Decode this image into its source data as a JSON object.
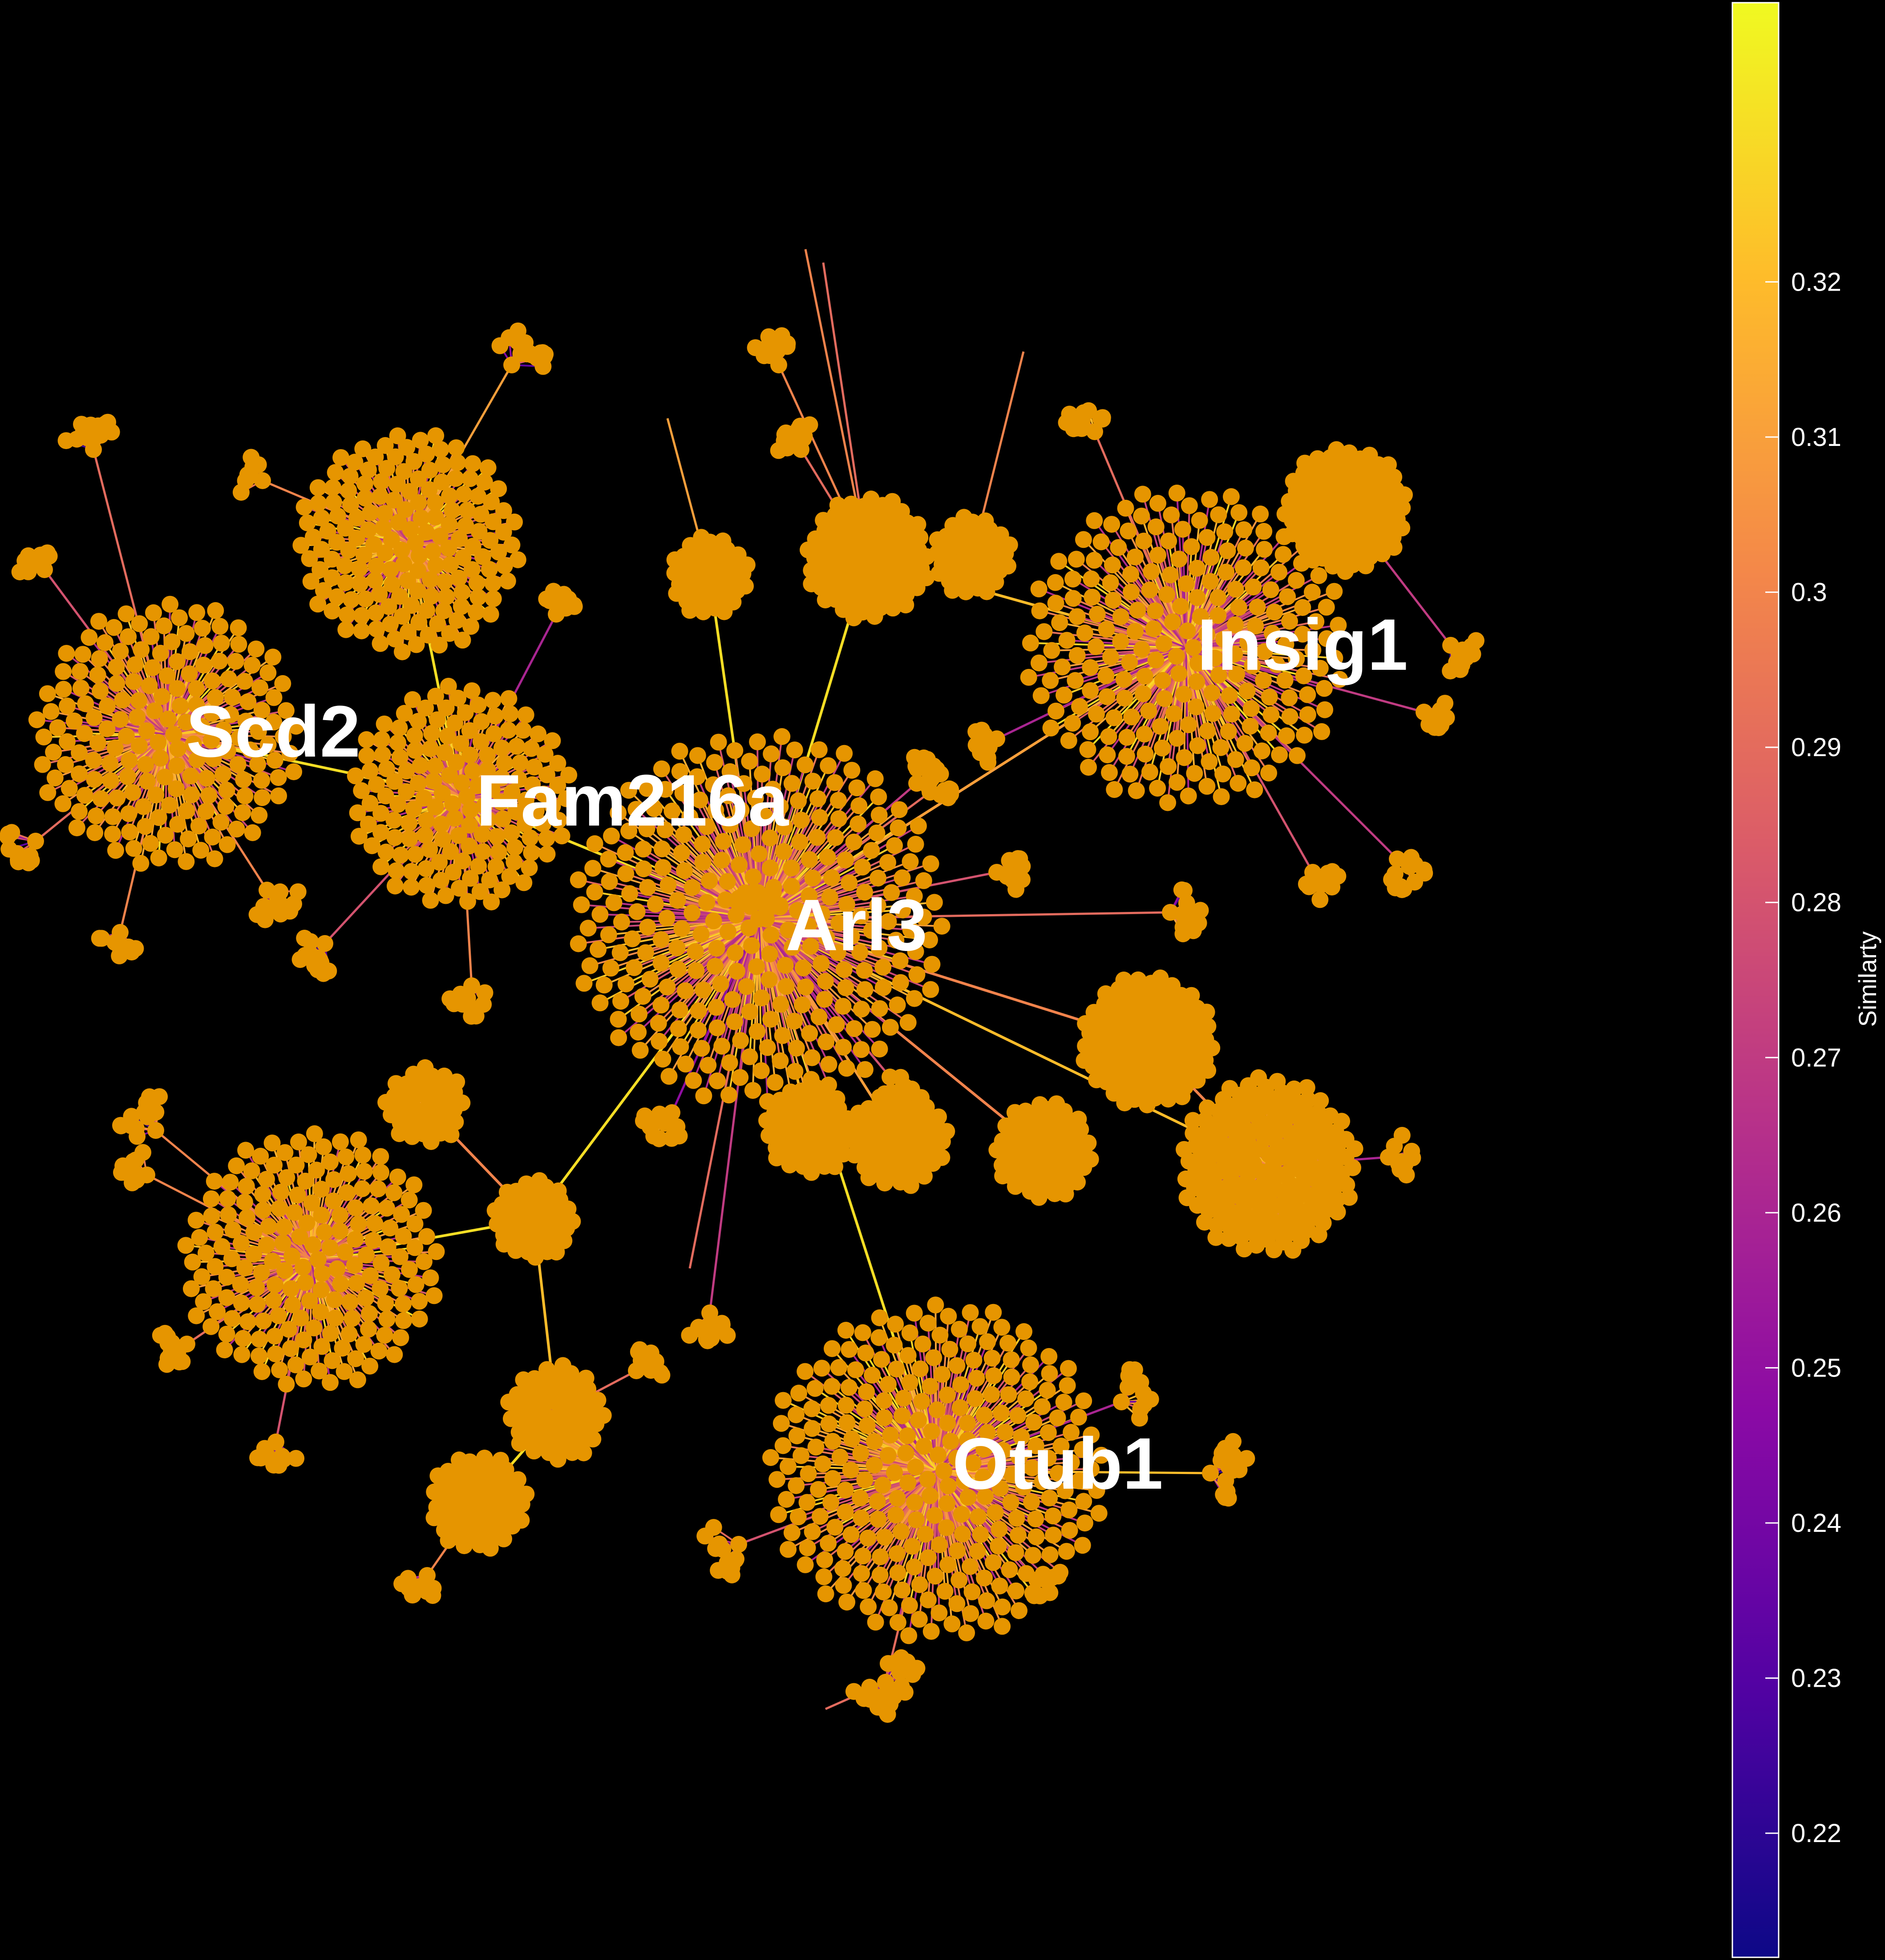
{
  "hubs": [
    {
      "id": "Scd2",
      "label": "Scd2"
    },
    {
      "id": "Fam216a",
      "label": "Fam216a"
    },
    {
      "id": "Arl3",
      "label": "Arl3"
    },
    {
      "id": "Insig1",
      "label": "Insig1"
    },
    {
      "id": "Otub1",
      "label": "Otub1"
    }
  ],
  "colorbar": {
    "title": "Similarty",
    "min": 0.212,
    "max": 0.338,
    "ticks": [
      {
        "value": 0.22,
        "label": "0.22"
      },
      {
        "value": 0.23,
        "label": "0.23"
      },
      {
        "value": 0.24,
        "label": "0.24"
      },
      {
        "value": 0.25,
        "label": "0.25"
      },
      {
        "value": 0.26,
        "label": "0.26"
      },
      {
        "value": 0.27,
        "label": "0.27"
      },
      {
        "value": 0.28,
        "label": "0.28"
      },
      {
        "value": 0.29,
        "label": "0.29"
      },
      {
        "value": 0.3,
        "label": "0.3"
      },
      {
        "value": 0.31,
        "label": "0.31"
      },
      {
        "value": 0.32,
        "label": "0.32"
      }
    ],
    "colormap": [
      "#0d0887",
      "#5302a3",
      "#8b0aa5",
      "#b83289",
      "#db5c68",
      "#f48849",
      "#febc2a",
      "#f0f921"
    ]
  },
  "colors": {
    "background": "#000000",
    "node": "#e69500",
    "label": "#ffffff"
  }
}
